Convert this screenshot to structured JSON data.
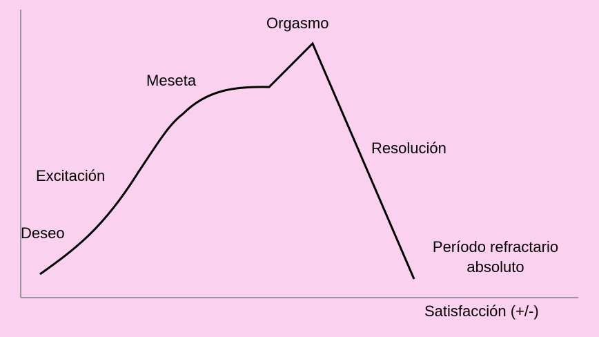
{
  "diagram": {
    "phases": {
      "deseo": "Deseo",
      "excitacion": "Excitación",
      "meseta": "Meseta",
      "orgasmo": "Orgasmo",
      "resolucion": "Resolución",
      "periodo_line1": "Período refractario",
      "periodo_line2": "absoluto"
    },
    "x_axis_label": "Satisfacción (+/-)",
    "colors": {
      "background": "#fad1ee",
      "axis": "#808080",
      "curve": "#000000"
    }
  }
}
